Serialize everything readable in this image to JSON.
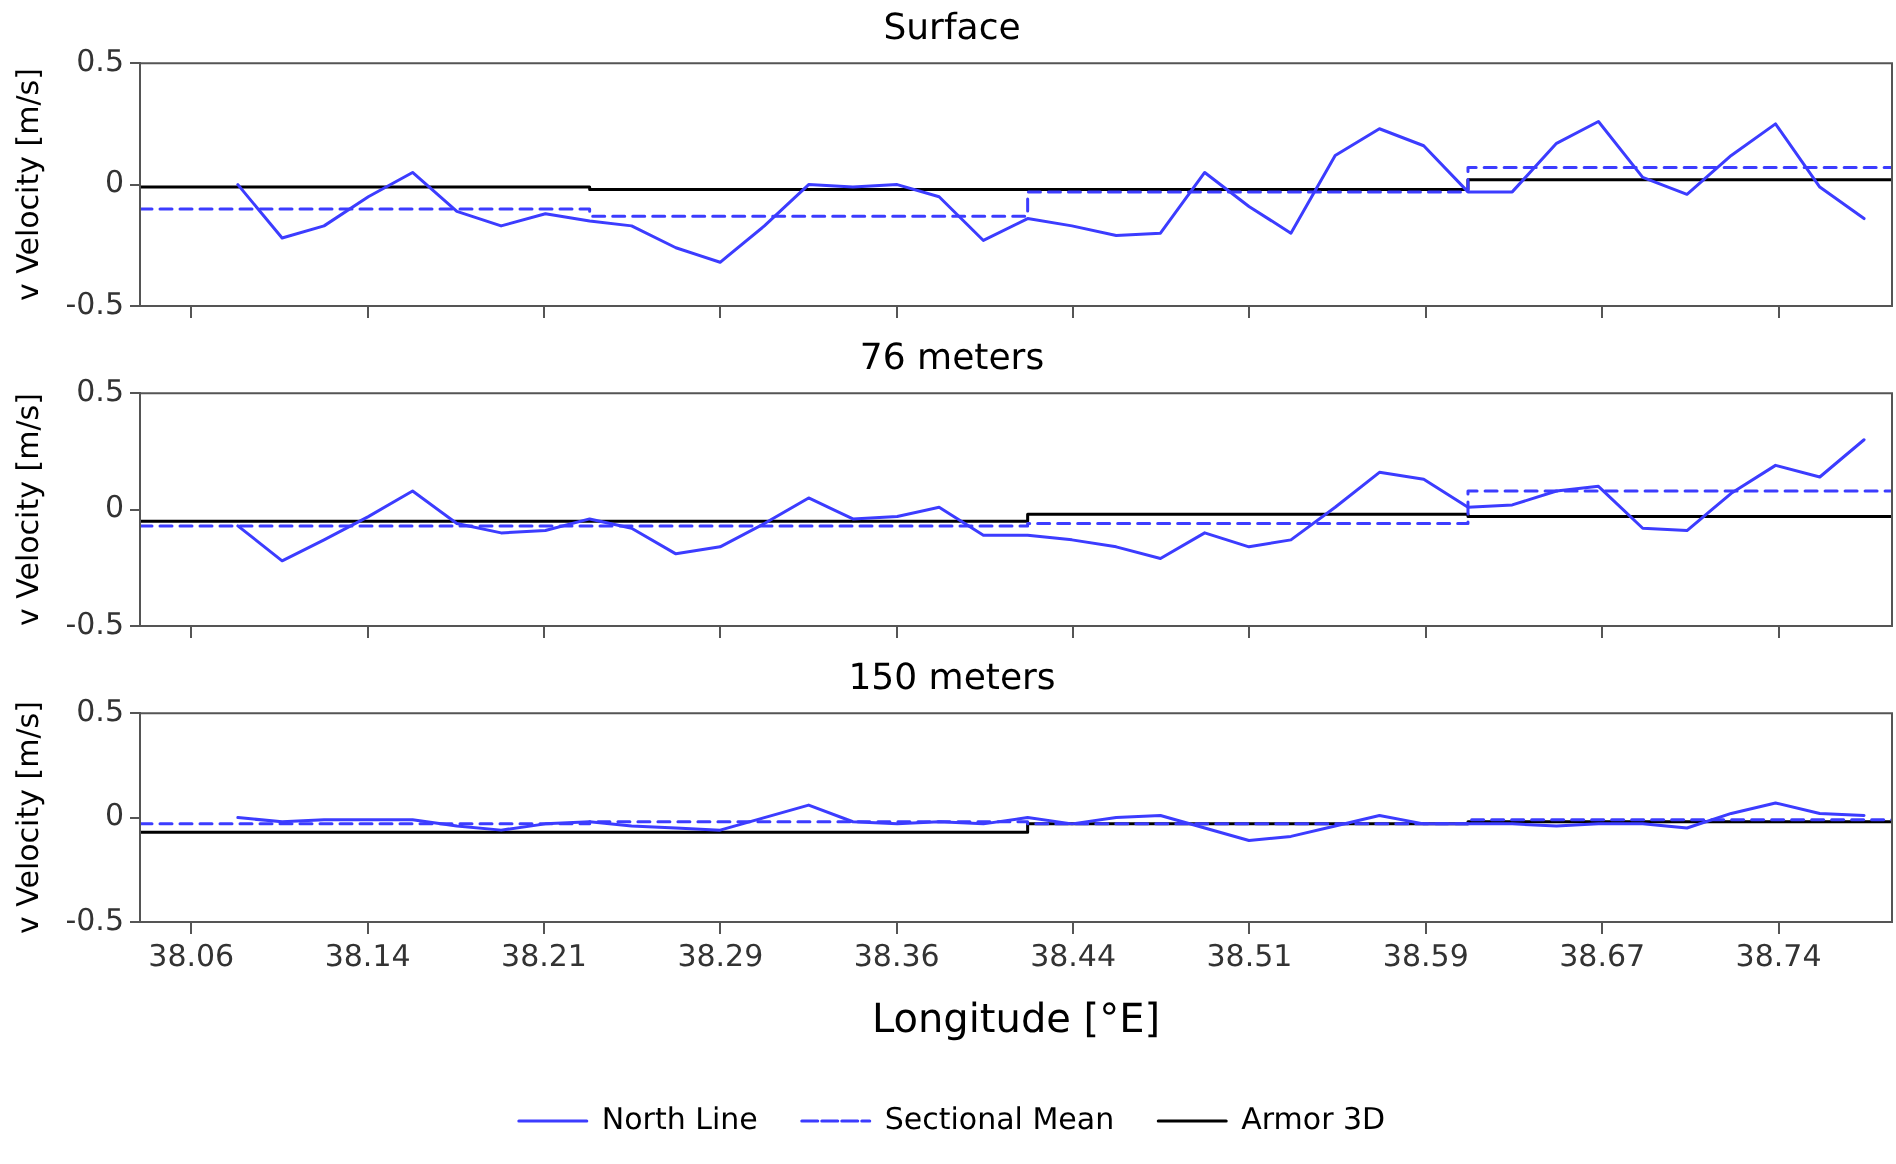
{
  "chart_data": [
    {
      "type": "line",
      "title": "Surface",
      "ylabel": "v Velocity [m/s]",
      "xlim": [
        38.038,
        38.79
      ],
      "ylim": [
        -0.5,
        0.5
      ],
      "yticks": [
        -0.5,
        0,
        0.5
      ],
      "xticks": [
        {
          "value": 38.06,
          "label": null
        },
        {
          "value": 38.1357,
          "label": null
        },
        {
          "value": 38.2114,
          "label": null
        },
        {
          "value": 38.2871,
          "label": null
        },
        {
          "value": 38.3628,
          "label": null
        },
        {
          "value": 38.4385,
          "label": null
        },
        {
          "value": 38.5142,
          "label": null
        },
        {
          "value": 38.5899,
          "label": null
        },
        {
          "value": 38.6656,
          "label": null
        },
        {
          "value": 38.7413,
          "label": null
        }
      ],
      "tick_labels": "y",
      "marker": "none",
      "legend": false,
      "series": [
        {
          "color": "#3c3cff",
          "line_style": "solid",
          "x": [
            38.08,
            38.099,
            38.117,
            38.136,
            38.155,
            38.174,
            38.193,
            38.212,
            38.231,
            38.249,
            38.268,
            38.287,
            38.306,
            38.325,
            38.344,
            38.363,
            38.381,
            38.4,
            38.419,
            38.438,
            38.457,
            38.476,
            38.495,
            38.514,
            38.532,
            38.551,
            38.57,
            38.589,
            38.608,
            38.627,
            38.646,
            38.664,
            38.683,
            38.702,
            38.721,
            38.74,
            38.759,
            38.778
          ],
          "values": [
            0.0,
            -0.22,
            -0.17,
            -0.05,
            0.05,
            -0.11,
            -0.17,
            -0.12,
            -0.15,
            -0.17,
            -0.26,
            -0.32,
            -0.17,
            0.0,
            -0.01,
            0.0,
            -0.05,
            -0.23,
            -0.14,
            -0.17,
            -0.21,
            -0.2,
            0.05,
            -0.09,
            -0.2,
            0.12,
            0.23,
            0.16,
            -0.03,
            -0.03,
            0.17,
            0.26,
            0.03,
            -0.04,
            0.12,
            0.25,
            -0.01,
            -0.14
          ]
        },
        {
          "type": "step",
          "color": "#3c3cff",
          "line_style": "dashed",
          "x": [
            38.038,
            38.231,
            38.419,
            38.608,
            38.79
          ],
          "values": [
            -0.1,
            -0.13,
            -0.03,
            0.07,
            0.07
          ]
        },
        {
          "type": "step",
          "color": "#000000",
          "line_style": "solid",
          "x": [
            38.038,
            38.231,
            38.419,
            38.608,
            38.79
          ],
          "values": [
            -0.01,
            -0.02,
            -0.02,
            0.02,
            0.02
          ]
        }
      ]
    },
    {
      "type": "line",
      "title": "76 meters",
      "ylabel": "v Velocity [m/s]",
      "xlim": [
        38.038,
        38.79
      ],
      "ylim": [
        -0.5,
        0.5
      ],
      "yticks": [
        -0.5,
        0,
        0.5
      ],
      "xticks": [
        {
          "value": 38.06,
          "label": null
        },
        {
          "value": 38.1357,
          "label": null
        },
        {
          "value": 38.2114,
          "label": null
        },
        {
          "value": 38.2871,
          "label": null
        },
        {
          "value": 38.3628,
          "label": null
        },
        {
          "value": 38.4385,
          "label": null
        },
        {
          "value": 38.5142,
          "label": null
        },
        {
          "value": 38.5899,
          "label": null
        },
        {
          "value": 38.6656,
          "label": null
        },
        {
          "value": 38.7413,
          "label": null
        }
      ],
      "tick_labels": "y",
      "marker": "none",
      "legend": false,
      "series": [
        {
          "color": "#3c3cff",
          "line_style": "solid",
          "x": [
            38.08,
            38.099,
            38.117,
            38.136,
            38.155,
            38.174,
            38.193,
            38.212,
            38.231,
            38.249,
            38.268,
            38.287,
            38.306,
            38.325,
            38.344,
            38.363,
            38.381,
            38.4,
            38.419,
            38.438,
            38.457,
            38.476,
            38.495,
            38.514,
            38.532,
            38.551,
            38.57,
            38.589,
            38.608,
            38.627,
            38.646,
            38.664,
            38.683,
            38.702,
            38.721,
            38.74,
            38.759,
            38.778
          ],
          "values": [
            -0.07,
            -0.22,
            -0.13,
            -0.03,
            0.08,
            -0.06,
            -0.1,
            -0.09,
            -0.04,
            -0.08,
            -0.19,
            -0.16,
            -0.06,
            0.05,
            -0.04,
            -0.03,
            0.01,
            -0.11,
            -0.11,
            -0.13,
            -0.16,
            -0.21,
            -0.1,
            -0.16,
            -0.13,
            0.01,
            0.16,
            0.13,
            0.01,
            0.02,
            0.08,
            0.1,
            -0.08,
            -0.09,
            0.07,
            0.19,
            0.14,
            0.3
          ]
        },
        {
          "type": "step",
          "color": "#3c3cff",
          "line_style": "dashed",
          "x": [
            38.038,
            38.231,
            38.419,
            38.608,
            38.79
          ],
          "values": [
            -0.07,
            -0.07,
            -0.06,
            0.08,
            0.08
          ]
        },
        {
          "type": "step",
          "color": "#000000",
          "line_style": "solid",
          "x": [
            38.038,
            38.231,
            38.419,
            38.608,
            38.79
          ],
          "values": [
            -0.05,
            -0.05,
            -0.02,
            -0.03,
            -0.03
          ]
        }
      ]
    },
    {
      "type": "line",
      "title": "150 meters",
      "ylabel": "v Velocity [m/s]",
      "xlabel": "Longitude [°E]",
      "xlim": [
        38.038,
        38.79
      ],
      "ylim": [
        -0.5,
        0.5
      ],
      "yticks": [
        -0.5,
        0,
        0.5
      ],
      "xticks": [
        {
          "value": 38.06,
          "label": "38.06"
        },
        {
          "value": 38.1357,
          "label": "38.14"
        },
        {
          "value": 38.2114,
          "label": "38.21"
        },
        {
          "value": 38.2871,
          "label": "38.29"
        },
        {
          "value": 38.3628,
          "label": "38.36"
        },
        {
          "value": 38.4385,
          "label": "38.44"
        },
        {
          "value": 38.5142,
          "label": "38.51"
        },
        {
          "value": 38.5899,
          "label": "38.59"
        },
        {
          "value": 38.6656,
          "label": "38.67"
        },
        {
          "value": 38.7413,
          "label": "38.74"
        }
      ],
      "marker": "none",
      "legend": "bottom",
      "series": [
        {
          "name": "North Line",
          "color": "#3c3cff",
          "line_style": "solid",
          "x": [
            38.08,
            38.099,
            38.117,
            38.136,
            38.155,
            38.174,
            38.193,
            38.212,
            38.231,
            38.249,
            38.268,
            38.287,
            38.306,
            38.325,
            38.344,
            38.363,
            38.381,
            38.4,
            38.419,
            38.438,
            38.457,
            38.476,
            38.495,
            38.514,
            38.532,
            38.551,
            38.57,
            38.589,
            38.608,
            38.627,
            38.646,
            38.664,
            38.683,
            38.702,
            38.721,
            38.74,
            38.759,
            38.778
          ],
          "values": [
            0.0,
            -0.02,
            -0.01,
            -0.01,
            -0.01,
            -0.04,
            -0.06,
            -0.03,
            -0.02,
            -0.04,
            -0.05,
            -0.06,
            0.0,
            0.06,
            -0.02,
            -0.03,
            -0.02,
            -0.03,
            0.0,
            -0.03,
            0.0,
            0.01,
            -0.05,
            -0.11,
            -0.09,
            -0.04,
            0.01,
            -0.03,
            -0.03,
            -0.03,
            -0.04,
            -0.03,
            -0.03,
            -0.05,
            0.02,
            0.07,
            0.02,
            0.01
          ]
        },
        {
          "type": "step",
          "name": "Sectional Mean",
          "color": "#3c3cff",
          "line_style": "dashed",
          "x": [
            38.038,
            38.231,
            38.419,
            38.608,
            38.79
          ],
          "values": [
            -0.03,
            -0.02,
            -0.03,
            -0.01,
            -0.01
          ]
        },
        {
          "type": "step",
          "name": "Armor 3D",
          "color": "#000000",
          "line_style": "solid",
          "x": [
            38.038,
            38.231,
            38.419,
            38.608,
            38.79
          ],
          "values": [
            -0.07,
            -0.07,
            -0.03,
            -0.02,
            -0.02
          ]
        }
      ]
    }
  ]
}
